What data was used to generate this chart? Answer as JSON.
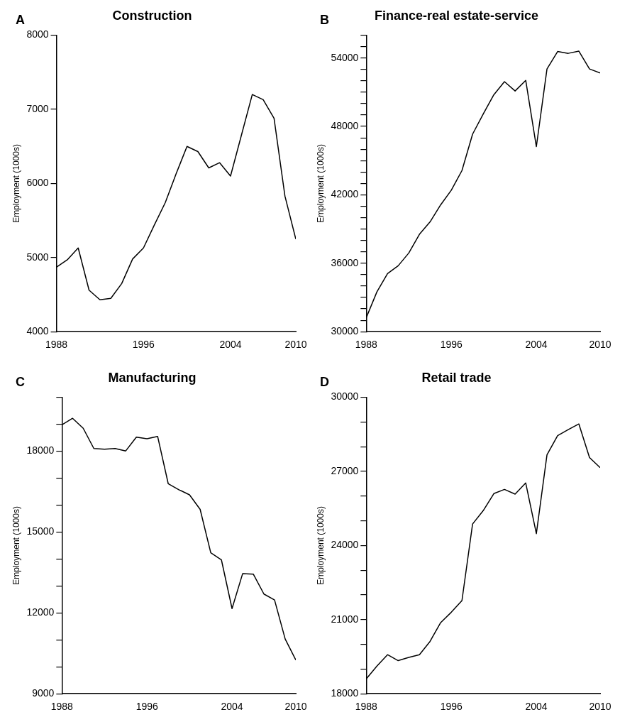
{
  "chart_data": [
    {
      "type": "line",
      "title": "Construction",
      "annotations": [
        "A"
      ],
      "ylabel": "Employment (1000s)",
      "grid": false,
      "legend": false,
      "marker": "none",
      "x": [
        1988,
        1989,
        1990,
        1991,
        1992,
        1993,
        1994,
        1995,
        1996,
        1997,
        1998,
        1999,
        2000,
        2001,
        2002,
        2003,
        2004,
        2005,
        2006,
        2007,
        2008,
        2009,
        2010
      ],
      "series": [
        {
          "color": "#000000",
          "values": [
            4870,
            4970,
            5130,
            4560,
            4430,
            4450,
            4650,
            4980,
            5130,
            5440,
            5740,
            6130,
            6500,
            6430,
            6210,
            6280,
            6100,
            6650,
            7200,
            7130,
            6880,
            5830,
            5250
          ]
        }
      ],
      "xlim": [
        1988,
        2010
      ],
      "xticks": [
        1988,
        1996,
        2004,
        2010
      ],
      "ylim": [
        4000,
        8000
      ],
      "yticks": [
        4000,
        5000,
        6000,
        7000,
        8000
      ]
    },
    {
      "type": "line",
      "title": "Finance-real estate-service",
      "annotations": [
        "B"
      ],
      "ylabel": "Employment (1000s)",
      "grid": false,
      "legend": false,
      "marker": "none",
      "x": [
        1988,
        1989,
        1990,
        1991,
        1992,
        1993,
        1994,
        1995,
        1996,
        1997,
        1998,
        1999,
        2000,
        2001,
        2002,
        2003,
        2004,
        2005,
        2006,
        2007,
        2008,
        2009,
        2010
      ],
      "series": [
        {
          "color": "#000000",
          "values": [
            31230,
            33490,
            35100,
            35780,
            36900,
            38540,
            39630,
            41130,
            42410,
            44130,
            47320,
            49090,
            50780,
            51930,
            51110,
            52040,
            46230,
            53040,
            54570,
            54410,
            54600,
            53040,
            52690
          ]
        }
      ],
      "xlim": [
        1988,
        2010
      ],
      "xticks": [
        1988,
        1996,
        2004,
        2010
      ],
      "ylim": [
        30000,
        56000
      ],
      "yticks": [
        30000,
        {
          "value": 31000,
          "label": null
        },
        {
          "value": 32000,
          "label": null
        },
        {
          "value": 33000,
          "label": null
        },
        {
          "value": 34000,
          "label": null
        },
        {
          "value": 35000,
          "label": null
        },
        36000,
        {
          "value": 37000,
          "label": null
        },
        {
          "value": 38000,
          "label": null
        },
        {
          "value": 39000,
          "label": null
        },
        {
          "value": 40000,
          "label": null
        },
        {
          "value": 41000,
          "label": null
        },
        42000,
        {
          "value": 43000,
          "label": null
        },
        {
          "value": 44000,
          "label": null
        },
        {
          "value": 45000,
          "label": null
        },
        {
          "value": 46000,
          "label": null
        },
        {
          "value": 47000,
          "label": null
        },
        48000,
        {
          "value": 49000,
          "label": null
        },
        {
          "value": 50000,
          "label": null
        },
        {
          "value": 51000,
          "label": null
        },
        {
          "value": 52000,
          "label": null
        },
        {
          "value": 53000,
          "label": null
        },
        54000,
        {
          "value": 55000,
          "label": null
        },
        {
          "value": 56000,
          "label": null
        }
      ]
    },
    {
      "type": "line",
      "title": "Manufacturing",
      "annotations": [
        "C"
      ],
      "ylabel": "Employment (1000s)",
      "grid": false,
      "legend": false,
      "marker": "none",
      "x": [
        1988,
        1989,
        1990,
        1991,
        1992,
        1993,
        1994,
        1995,
        1996,
        1997,
        1998,
        1999,
        2000,
        2001,
        2002,
        2003,
        2004,
        2005,
        2006,
        2007,
        2008,
        2009,
        2010
      ],
      "series": [
        {
          "color": "#000000",
          "values": [
            18980,
            19220,
            18850,
            18100,
            18070,
            18100,
            18010,
            18520,
            18460,
            18550,
            16790,
            16570,
            16380,
            15840,
            14230,
            13970,
            12160,
            13460,
            13440,
            12700,
            12480,
            11030,
            10250
          ]
        }
      ],
      "xlim": [
        1988,
        2010
      ],
      "xticks": [
        1988,
        1996,
        2004,
        2010
      ],
      "ylim": [
        9000,
        20000
      ],
      "yticks": [
        9000,
        {
          "value": 10000,
          "label": null
        },
        {
          "value": 11000,
          "label": null
        },
        12000,
        {
          "value": 13000,
          "label": null
        },
        {
          "value": 14000,
          "label": null
        },
        15000,
        {
          "value": 16000,
          "label": null
        },
        {
          "value": 17000,
          "label": null
        },
        18000,
        {
          "value": 19000,
          "label": null
        },
        {
          "value": 20000,
          "label": null
        }
      ]
    },
    {
      "type": "line",
      "title": "Retail trade",
      "annotations": [
        "D"
      ],
      "ylabel": "Employment (1000s)",
      "grid": false,
      "legend": false,
      "marker": "none",
      "x": [
        1988,
        1989,
        1990,
        1991,
        1992,
        1993,
        1994,
        1995,
        1996,
        1997,
        1998,
        1999,
        2000,
        2001,
        2002,
        2003,
        2004,
        2005,
        2006,
        2007,
        2008,
        2009,
        2010
      ],
      "series": [
        {
          "color": "#000000",
          "values": [
            18600,
            19120,
            19580,
            19340,
            19470,
            19580,
            20120,
            20880,
            21300,
            21770,
            24870,
            25410,
            26100,
            26270,
            26080,
            26530,
            24480,
            27670,
            28450,
            28690,
            28920,
            27560,
            27150
          ]
        }
      ],
      "xlim": [
        1988,
        2010
      ],
      "xticks": [
        1988,
        1996,
        2004,
        2010
      ],
      "ylim": [
        18000,
        30000
      ],
      "yticks": [
        18000,
        {
          "value": 19000,
          "label": null
        },
        {
          "value": 20000,
          "label": null
        },
        21000,
        {
          "value": 22000,
          "label": null
        },
        {
          "value": 23000,
          "label": null
        },
        24000,
        {
          "value": 25000,
          "label": null
        },
        {
          "value": 26000,
          "label": null
        },
        27000,
        {
          "value": 28000,
          "label": null
        },
        {
          "value": 29000,
          "label": null
        },
        30000
      ]
    }
  ]
}
